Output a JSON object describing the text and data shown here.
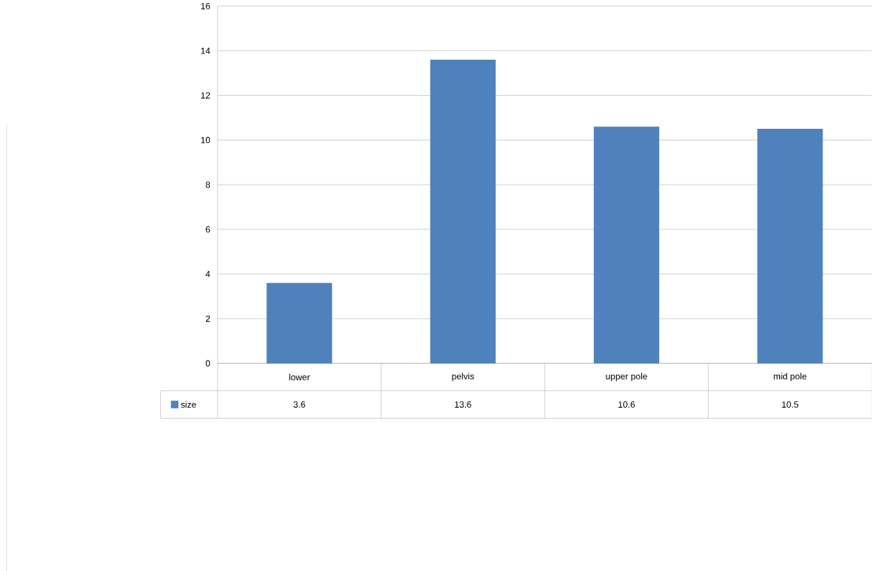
{
  "chart_data": {
    "type": "bar",
    "categories": [
      "lower",
      "pelvis",
      "upper pole",
      "mid pole"
    ],
    "series": [
      {
        "name": "size",
        "color": "#4f81bd",
        "values": [
          3.6,
          13.6,
          10.6,
          10.5
        ]
      }
    ],
    "ylim": [
      0,
      16
    ],
    "yticks": [
      0,
      2,
      4,
      6,
      8,
      10,
      12,
      14,
      16
    ],
    "grid": "y",
    "legend": "bottom",
    "data_labels": true
  }
}
